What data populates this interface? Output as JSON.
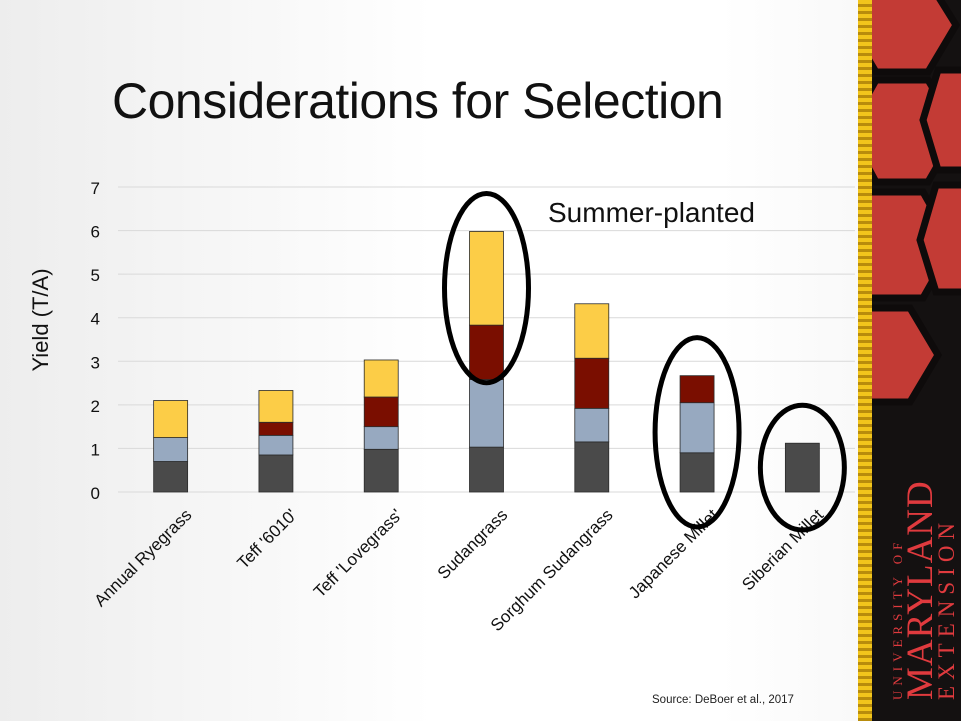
{
  "slide": {
    "title": "Considerations for Selection",
    "annotation": "Summer-planted",
    "source": "Source: DeBoer et al., 2017",
    "brand": {
      "line1": "UNIVERSITY OF",
      "line2": "MARYLAND",
      "line3": "EXTENSION"
    }
  },
  "colors": {
    "series": [
      "#4a4a4a",
      "#97a9c0",
      "#7a0e00",
      "#fccd47"
    ],
    "ellipse": "#000000",
    "panel": "#141111",
    "shell": "#c33b35",
    "brand_text": "#e03a3e",
    "border": "#f2c51c"
  },
  "chart_data": {
    "type": "bar",
    "stacked": true,
    "categories": [
      "Annual Ryegrass",
      "Teff '6010'",
      "Teff 'Lovegrass'",
      "Sudangrass",
      "Sorghum Sudangrass",
      "Japanese Millet",
      "Siberian Millet"
    ],
    "series": [
      {
        "values": [
          0.7,
          0.85,
          0.98,
          1.03,
          1.15,
          0.9,
          1.12
        ]
      },
      {
        "values": [
          0.55,
          0.45,
          0.52,
          1.55,
          0.77,
          1.15,
          0
        ]
      },
      {
        "values": [
          0,
          0.3,
          0.68,
          1.25,
          1.15,
          0.62,
          0
        ]
      },
      {
        "values": [
          0.85,
          0.73,
          0.85,
          2.15,
          1.25,
          0,
          0
        ]
      }
    ],
    "ylabel": "Yield (T/A)",
    "xlabel": "",
    "ylim": [
      0,
      7
    ],
    "yticks": [
      0,
      1,
      2,
      3,
      4,
      5,
      6,
      7
    ],
    "grid": true,
    "highlighted": [
      "Sudangrass",
      "Japanese Millet",
      "Siberian Millet"
    ]
  }
}
